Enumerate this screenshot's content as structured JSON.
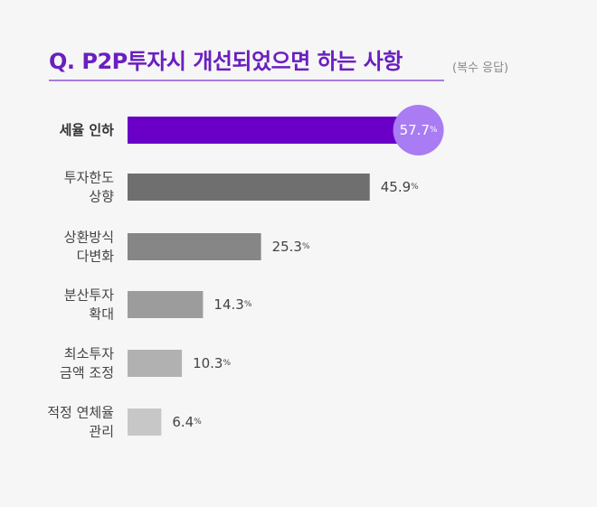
{
  "chart_data": {
    "type": "bar",
    "orientation": "horizontal",
    "title": "Q. P2P투자시 개선되었으면 하는 사항",
    "subtitle": "(복수 응답)",
    "categories": [
      [
        "세율 인하"
      ],
      [
        "투자한도",
        "상향"
      ],
      [
        "상환방식",
        "다변화"
      ],
      [
        "분산투자",
        "확대"
      ],
      [
        "최소투자",
        "금액 조정"
      ],
      [
        "적정 연체율",
        "관리"
      ]
    ],
    "values": [
      57.7,
      45.9,
      25.3,
      14.3,
      10.3,
      6.4
    ],
    "value_labels": [
      "57.7",
      "45.9",
      "25.3",
      "14.3",
      "10.3",
      "6.4"
    ],
    "unit": "%",
    "highlight_index": 0,
    "xlim": [
      0,
      60
    ],
    "grid": false,
    "legend": "none",
    "colors": {
      "highlight_bar": "#6a00c8",
      "highlight_badge": "#a97cf3",
      "bars": [
        "#6f6f6f",
        "#868686",
        "#9c9c9c",
        "#b1b1b1",
        "#c7c7c7"
      ],
      "text": "#444444",
      "highlight_text": "#333333",
      "badge_text": "#ffffff"
    }
  }
}
